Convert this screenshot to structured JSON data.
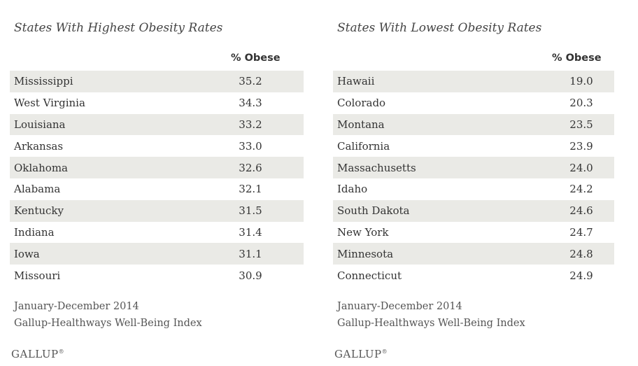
{
  "left": {
    "title": "States With Highest Obesity Rates",
    "column_header": "% Obese",
    "rows": [
      {
        "state": "Mississippi",
        "value": "35.2"
      },
      {
        "state": "West Virginia",
        "value": "34.3"
      },
      {
        "state": "Louisiana",
        "value": "33.2"
      },
      {
        "state": "Arkansas",
        "value": "33.0"
      },
      {
        "state": "Oklahoma",
        "value": "32.6"
      },
      {
        "state": "Alabama",
        "value": "32.1"
      },
      {
        "state": "Kentucky",
        "value": "31.5"
      },
      {
        "state": "Indiana",
        "value": "31.4"
      },
      {
        "state": "Iowa",
        "value": "31.1"
      },
      {
        "state": "Missouri",
        "value": "30.9"
      }
    ],
    "period": "January-December 2014",
    "source": "Gallup-Healthways Well-Being Index",
    "logo": "GALLUP"
  },
  "right": {
    "title": "States With Lowest Obesity Rates",
    "column_header": "% Obese",
    "rows": [
      {
        "state": "Hawaii",
        "value": "19.0"
      },
      {
        "state": "Colorado",
        "value": "20.3"
      },
      {
        "state": "Montana",
        "value": "23.5"
      },
      {
        "state": "California",
        "value": "23.9"
      },
      {
        "state": "Massachusetts",
        "value": "24.0"
      },
      {
        "state": "Idaho",
        "value": "24.2"
      },
      {
        "state": "South Dakota",
        "value": "24.6"
      },
      {
        "state": "New York",
        "value": "24.7"
      },
      {
        "state": "Minnesota",
        "value": "24.8"
      },
      {
        "state": "Connecticut",
        "value": "24.9"
      }
    ],
    "period": "January-December 2014",
    "source": "Gallup-Healthways Well-Being Index",
    "logo": "GALLUP"
  },
  "colors": {
    "row_shade": "#eaeae6",
    "text": "#333333"
  }
}
